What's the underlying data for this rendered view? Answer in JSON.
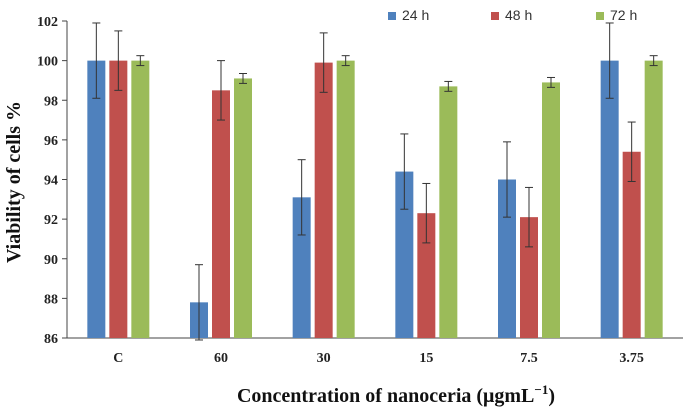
{
  "chart_data": {
    "type": "bar",
    "title": "",
    "xlabel": "Concentration of nanoceria (μgmL",
    "xlabel_superscript": "−1",
    "xlabel_suffix": ")",
    "ylabel": "Viability of cells %",
    "ylim": [
      86,
      102
    ],
    "yticks": [
      86,
      88,
      90,
      92,
      94,
      96,
      98,
      100,
      102
    ],
    "categories": [
      "C",
      "60",
      "30",
      "15",
      "7.5",
      "3.75"
    ],
    "legend_position": "top-right",
    "series": [
      {
        "name": "24 h",
        "color": "#4F81BD",
        "values": [
          100,
          87.8,
          93.1,
          94.4,
          94.0,
          100
        ],
        "errors": [
          1.9,
          1.9,
          1.9,
          1.9,
          1.9,
          1.9
        ]
      },
      {
        "name": "48 h",
        "color": "#C0504D",
        "values": [
          100,
          98.5,
          99.9,
          92.3,
          92.1,
          95.4
        ],
        "errors": [
          1.5,
          1.5,
          1.5,
          1.5,
          1.5,
          1.5
        ]
      },
      {
        "name": "72 h",
        "color": "#9BBB59",
        "values": [
          100,
          99.1,
          100,
          98.7,
          98.9,
          100
        ],
        "errors": [
          0.25,
          0.25,
          0.25,
          0.25,
          0.25,
          0.25
        ]
      }
    ]
  }
}
